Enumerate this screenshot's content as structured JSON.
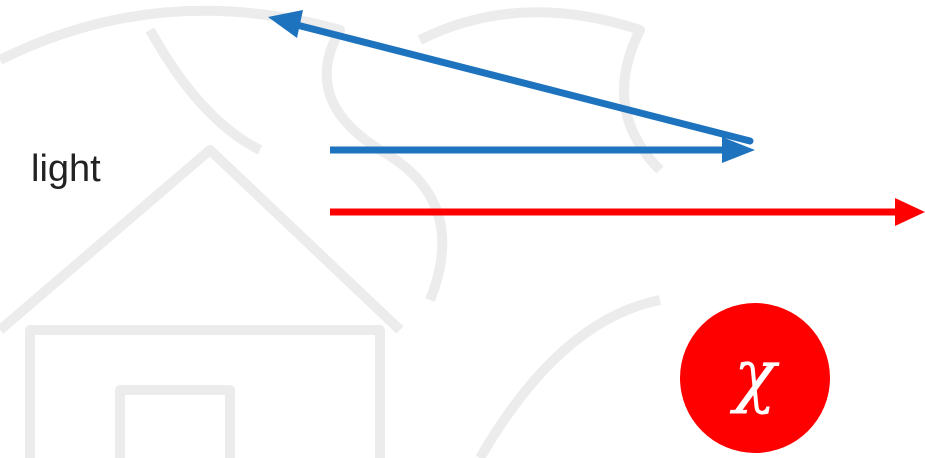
{
  "diagram": {
    "label": "light",
    "symbol": "χ",
    "colors": {
      "reflected_arrow": "#1e73be",
      "incident_arrow": "#ff0000",
      "badge": "#ff0000",
      "watermark": "#ececec",
      "text": "#222222"
    }
  }
}
